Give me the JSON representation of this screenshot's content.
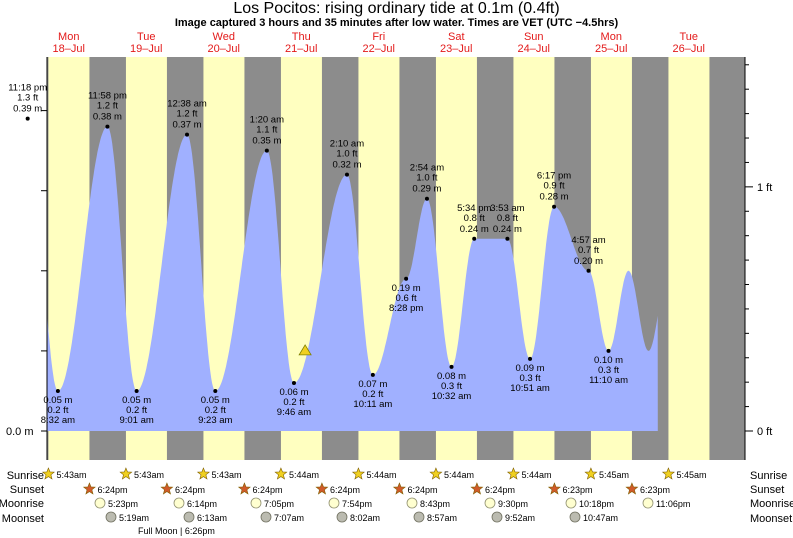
{
  "title": "Los Pocitos: rising  ordinary tide at 0.1m (0.4ft)",
  "subtitle": "Image captured 3 hours and 35 minutes after low water. Times are VET (UTC −4.5hrs)",
  "days": [
    {
      "dow": "Mon",
      "date": "18–Jul"
    },
    {
      "dow": "Tue",
      "date": "19–Jul"
    },
    {
      "dow": "Wed",
      "date": "20–Jul"
    },
    {
      "dow": "Thu",
      "date": "21–Jul"
    },
    {
      "dow": "Fri",
      "date": "22–Jul"
    },
    {
      "dow": "Sat",
      "date": "23–Jul"
    },
    {
      "dow": "Sun",
      "date": "24–Jul"
    },
    {
      "dow": "Mon",
      "date": "25–Jul"
    },
    {
      "dow": "Tue",
      "date": "26–Jul"
    }
  ],
  "chart_data": {
    "type": "area",
    "title": "Los Pocitos: rising  ordinary tide at 0.1m (0.4ft)",
    "left_axis": {
      "unit": "m",
      "tick_label": "0.0 m"
    },
    "right_axis": {
      "unit": "ft",
      "tick_labels": [
        "0 ft",
        "1 ft"
      ]
    },
    "ylim_m": [
      -0.04,
      0.46
    ],
    "xlim_days": [
      -0.45,
      8.45
    ],
    "series_start_day": -0.35,
    "series_end_day": 8.1,
    "extremes": [
      {
        "kind": "high",
        "day": -0.03,
        "time": "11:18 pm",
        "ft": "1.3 ft",
        "m": "0.39 m",
        "value": 0.39
      },
      {
        "kind": "low",
        "day": 0.36,
        "time": "8:32 am",
        "ft": "0.2 ft",
        "m": "0.05 m",
        "value": 0.05
      },
      {
        "kind": "high",
        "day": 0.999,
        "time": "11:58 pm",
        "ft": "1.2 ft",
        "m": "0.38 m",
        "value": 0.38
      },
      {
        "kind": "low",
        "day": 1.376,
        "time": "9:01 am",
        "ft": "0.2 ft",
        "m": "0.05 m",
        "value": 0.05
      },
      {
        "kind": "high",
        "day": 2.026,
        "time": "12:38 am",
        "ft": "1.2 ft",
        "m": "0.37 m",
        "value": 0.37
      },
      {
        "kind": "low",
        "day": 2.391,
        "time": "9:23 am",
        "ft": "0.2 ft",
        "m": "0.05 m",
        "value": 0.05
      },
      {
        "kind": "high",
        "day": 3.056,
        "time": "1:20 am",
        "ft": "1.1 ft",
        "m": "0.35 m",
        "value": 0.35
      },
      {
        "kind": "low",
        "day": 3.406,
        "time": "9:46 am",
        "ft": "0.2 ft",
        "m": "0.06 m",
        "value": 0.06
      },
      {
        "kind": "high",
        "day": 4.09,
        "time": "2:10 am",
        "ft": "1.0 ft",
        "m": "0.32 m",
        "value": 0.32
      },
      {
        "kind": "low",
        "day": 4.424,
        "time": "10:11 am",
        "ft": "0.2 ft",
        "m": "0.07 m",
        "value": 0.07
      },
      {
        "kind": "low",
        "day": 4.853,
        "time": "8:28 pm",
        "ft": "0.6 ft",
        "m": "0.19 m",
        "value": 0.19
      },
      {
        "kind": "high",
        "day": 5.122,
        "time": "2:54 am",
        "ft": "1.0 ft",
        "m": "0.29 m",
        "value": 0.29
      },
      {
        "kind": "low",
        "day": 5.439,
        "time": "10:32 am",
        "ft": "0.3 ft",
        "m": "0.08 m",
        "value": 0.08
      },
      {
        "kind": "high",
        "day": 5.732,
        "time": "5:34 pm",
        "ft": "0.8 ft",
        "m": "0.24 m",
        "value": 0.24
      },
      {
        "kind": "high",
        "day": 6.16,
        "time": "3:53 am",
        "ft": "0.8 ft",
        "m": "0.24 m",
        "value": 0.24
      },
      {
        "kind": "low",
        "day": 6.452,
        "time": "10:51 am",
        "ft": "0.3 ft",
        "m": "0.09 m",
        "value": 0.09
      },
      {
        "kind": "high",
        "day": 6.762,
        "time": "6:17 pm",
        "ft": "0.9 ft",
        "m": "0.28 m",
        "value": 0.28
      },
      {
        "kind": "high",
        "day": 7.207,
        "time": "4:57 am",
        "ft": "0.7 ft",
        "m": "0.20 m",
        "value": 0.2
      },
      {
        "kind": "low",
        "day": 7.465,
        "time": "11:10 am",
        "ft": "0.3 ft",
        "m": "0.10 m",
        "value": 0.1
      }
    ],
    "current_marker": {
      "day": 3.55,
      "value": 0.1
    },
    "sunrise_day_fraction": 0.238,
    "sunset_day_fraction": 0.767
  },
  "rows": {
    "sunrise": "Sunrise",
    "sunset": "Sunset",
    "moonrise": "Moonrise",
    "moonset": "Moonset"
  },
  "sunrise": [
    "5:43am",
    "5:43am",
    "5:43am",
    "5:44am",
    "5:44am",
    "5:44am",
    "5:44am",
    "5:45am",
    "5:45am"
  ],
  "sunset": [
    "6:24pm",
    "6:24pm",
    "6:24pm",
    "6:24pm",
    "6:24pm",
    "6:24pm",
    "6:23pm",
    "6:23pm"
  ],
  "moonrise": [
    "5:23pm",
    "6:14pm",
    "7:05pm",
    "7:54pm",
    "8:43pm",
    "9:30pm",
    "10:18pm",
    "11:06pm"
  ],
  "moonset": [
    "5:19am",
    "6:13am",
    "7:07am",
    "8:02am",
    "8:57am",
    "9:52am",
    "10:47am"
  ],
  "full_moon": "Full Moon | 6:26pm",
  "colors": {
    "night": "#8c8c8c",
    "day": "#ffffc0",
    "tide": "#a0b0ff",
    "day_label": "#e31a1a",
    "sun": "#f0d020",
    "sunset_star": "#d05a2a",
    "moonrise": "#ffffd0",
    "moonset": "#bbbbb0"
  }
}
